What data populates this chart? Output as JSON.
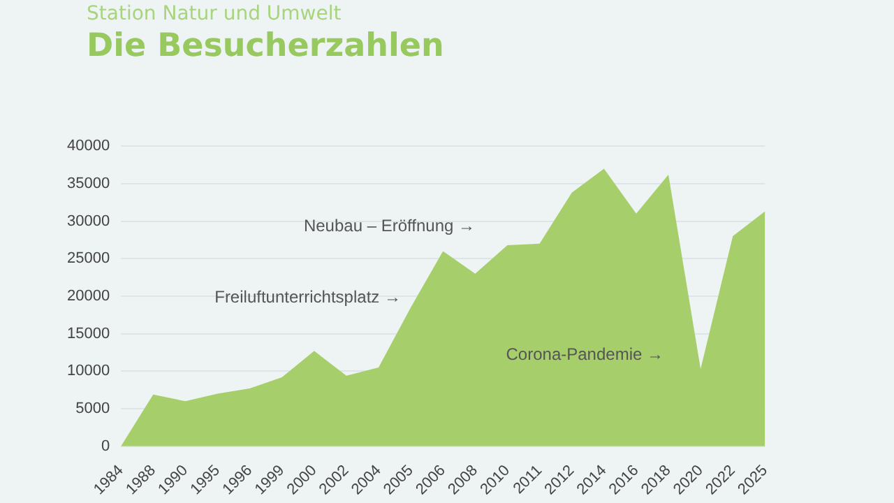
{
  "chart_data": {
    "type": "area",
    "subtitle": "Station Natur und Umwelt",
    "title": "Die Besucherzahlen",
    "categories": [
      "1984",
      "1988",
      "1990",
      "1995",
      "1996",
      "1999",
      "2000",
      "2002",
      "2004",
      "2005",
      "2006",
      "2008",
      "2010",
      "2011",
      "2012",
      "2014",
      "2016",
      "2018",
      "2020",
      "2022",
      "2025"
    ],
    "values": [
      0,
      6900,
      6000,
      7000,
      7700,
      9200,
      12700,
      9400,
      10500,
      18500,
      26000,
      23000,
      26800,
      27000,
      33800,
      37000,
      31000,
      36200,
      10300,
      28000,
      31300
    ],
    "color": "#a6cf6c",
    "ylim": [
      0,
      40000
    ],
    "yticks": [
      0,
      5000,
      10000,
      15000,
      20000,
      25000,
      30000,
      35000,
      40000
    ],
    "grid": "y",
    "legend": false,
    "annotations": [
      "Freiluftunterrichtsplatz →",
      "Neubau – Eröffnung →",
      "Corona-Pandemie →"
    ]
  }
}
